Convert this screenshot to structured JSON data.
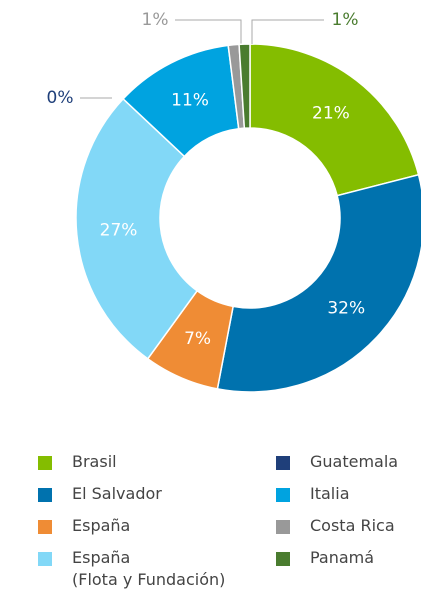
{
  "chart_data": {
    "type": "donut",
    "series": [
      {
        "name": "Brasil",
        "color": "#84bd00",
        "values": [
          21
        ],
        "value_labels": [
          "21%"
        ]
      },
      {
        "name": "El Salvador",
        "color": "#0072ae",
        "values": [
          32
        ],
        "value_labels": [
          "32%"
        ]
      },
      {
        "name": "España",
        "color": "#ef8c35",
        "values": [
          7
        ],
        "value_labels": [
          "7%"
        ]
      },
      {
        "name": "España\n(Flota y Fundación)",
        "color": "#82d8f7",
        "values": [
          27
        ],
        "value_labels": [
          "27%"
        ]
      },
      {
        "name": "Guatemala",
        "color": "#1f3f7a",
        "values": [
          0
        ],
        "value_labels": [
          "0%"
        ]
      },
      {
        "name": "Italia",
        "color": "#00a3e0",
        "values": [
          11
        ],
        "value_labels": [
          "11%"
        ]
      },
      {
        "name": "Costa Rica",
        "color": "#999999",
        "values": [
          1
        ],
        "value_labels": [
          "1%"
        ]
      },
      {
        "name": "Panamá",
        "color": "#4a7c2f",
        "values": [
          1
        ],
        "value_labels": [
          "1%"
        ]
      }
    ]
  }
}
